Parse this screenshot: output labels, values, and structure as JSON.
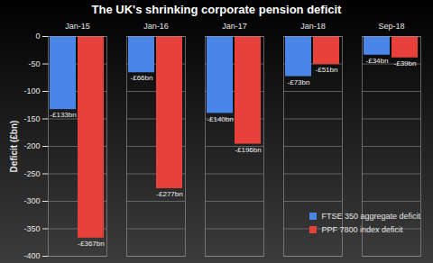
{
  "chart_data": {
    "type": "bar",
    "title": "The UK's shrinking corporate pension deficit",
    "y_label": "Deficit (£bn)",
    "categories": [
      "Jan-15",
      "Jan-16",
      "Jan-17",
      "Jan-18",
      "Sep-18"
    ],
    "series": [
      {
        "name": "FTSE 350 aggregate deficit",
        "color": "#4a86e8",
        "values": [
          -133,
          -66,
          -140,
          -73,
          -34
        ],
        "value_labels": [
          "-£133bn",
          "-£66bn",
          "-£140bn",
          "-£73bn",
          "-£34bn"
        ]
      },
      {
        "name": "PPF 7800 index deficit",
        "color": "#e8403a",
        "values": [
          -367,
          -277,
          -196,
          -51,
          -39
        ],
        "value_labels": [
          "-£367bn",
          "-£277bn",
          "-£196bn",
          "-£51bn",
          "-£39bn"
        ]
      }
    ],
    "ylim": [
      -400,
      0
    ],
    "yticks": [
      -400,
      -350,
      -300,
      -250,
      -200,
      -150,
      -100,
      -50,
      0
    ],
    "grid": true,
    "legend": "bottom-right",
    "data_labels": true
  }
}
